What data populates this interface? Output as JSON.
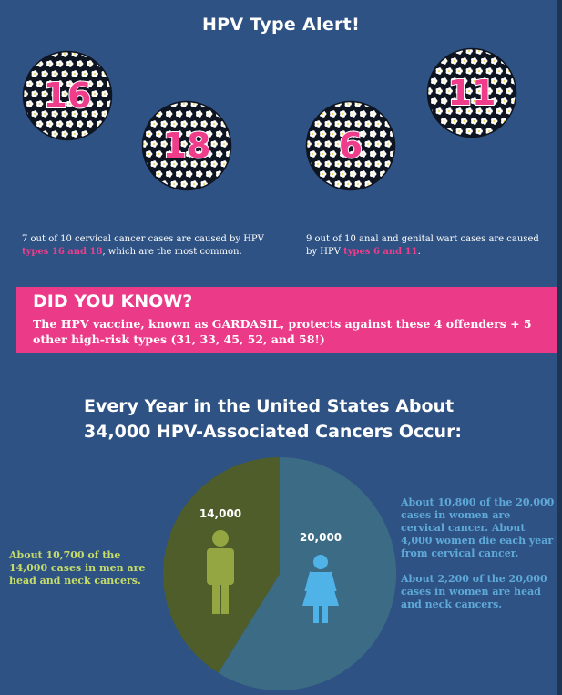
{
  "title": "HPV Type Alert!",
  "viruses": [
    {
      "label": "16"
    },
    {
      "label": "18"
    },
    {
      "label": "6"
    },
    {
      "label": "11"
    }
  ],
  "captions": {
    "left": {
      "text": "7 out of 10 cervical cancer cases are caused by HPV ",
      "highlight": "types 16 and 18",
      "tail": ", which are the most common."
    },
    "right": {
      "text": "9 out of 10 anal and genital wart cases are caused by HPV ",
      "highlight": "types 6 and 11",
      "tail": "."
    }
  },
  "did_you_know": {
    "title": "DID YOU KNOW?",
    "text": "The HPV vaccine, known as GARDASIL, protects against these 4 offenders + 5 other high-risk types (31, 33, 45, 52, and 58!)"
  },
  "heading": {
    "line1": "Every Year in the United States About",
    "line2": "34,000 HPV-Associated Cancers Occur:"
  },
  "chart_data": {
    "type": "pie",
    "slices": [
      {
        "label": "14,000",
        "value": 14000,
        "color": "#4f5d2a",
        "icon": "man-icon",
        "icon_color": "#93a641"
      },
      {
        "label": "20,000",
        "value": 20000,
        "color": "#3c6b86",
        "icon": "woman-icon",
        "icon_color": "#4fb3e8"
      }
    ],
    "annotations": {
      "men": "About 10,700 of the 14,000 cases in men are head and neck cancers.",
      "women": [
        "About 10,800 of the 20,000 cases in women are cervical cancer. About 4,000 women die each year from cervical cancer.",
        "About 2,200 of the 20,000 cases in women are head and neck cancers."
      ]
    }
  },
  "colors": {
    "background": "#2e5283",
    "accent_pink": "#ea3a88",
    "men_text": "#c5dc6a",
    "women_text": "#5ea9d9"
  }
}
